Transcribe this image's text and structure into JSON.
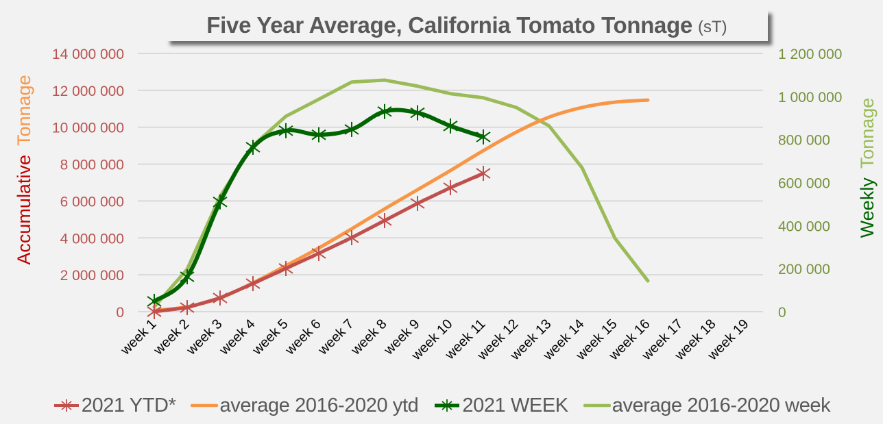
{
  "chart_data": {
    "type": "line",
    "title": "Five Year Average, California Tomato Tonnage",
    "title_unit": "(sT)",
    "categories": [
      "week 1",
      "week 2",
      "week 3",
      "week 4",
      "week 5",
      "week 6",
      "week 7",
      "week 8",
      "week 9",
      "week 10",
      "week 11",
      "week 12",
      "week 13",
      "week 14",
      "week 15",
      "week 16",
      "week 17",
      "week 18",
      "week 19"
    ],
    "y_left": {
      "label_part1": "Accumulative",
      "label_part2": "Tonnage",
      "label_part1_color": "#c00000",
      "label_part2_color": "#f79646",
      "range": [
        0,
        14000000
      ],
      "ticks": [
        0,
        2000000,
        4000000,
        6000000,
        8000000,
        10000000,
        12000000,
        14000000
      ],
      "tick_labels": [
        "0",
        "2 000 000",
        "4 000 000",
        "6 000 000",
        "8 000 000",
        "10 000 000",
        "12 000 000",
        "14 000 000"
      ],
      "tick_color": "#b85450"
    },
    "y_right": {
      "label_part1": "Weekly",
      "label_part2": "Tonnage",
      "label_part1_color": "#006400",
      "label_part2_color": "#9bbb59",
      "range": [
        0,
        1200000
      ],
      "ticks": [
        0,
        200000,
        400000,
        600000,
        800000,
        1000000,
        1200000
      ],
      "tick_labels": [
        "0",
        "200 000",
        "400 000",
        "600 000",
        "800 000",
        "1 000 000",
        "1 200 000"
      ],
      "tick_color": "#76923c"
    },
    "grid": true,
    "legend_position": "bottom",
    "series": [
      {
        "name": "2021 YTD*",
        "axis": "left",
        "color": "#c0504d",
        "marker": "asterisk",
        "smooth": false,
        "values": [
          0,
          220000,
          740000,
          1520000,
          2340000,
          3160000,
          4010000,
          4940000,
          5870000,
          6720000,
          7500000
        ]
      },
      {
        "name": "average 2016-2020 ytd",
        "axis": "left",
        "color": "#f79646",
        "marker": "none",
        "smooth": true,
        "values": [
          70000,
          260000,
          740000,
          1560000,
          2490000,
          3450000,
          4490000,
          5570000,
          6610000,
          7650000,
          8730000,
          9730000,
          10550000,
          11070000,
          11360000,
          11470000
        ]
      },
      {
        "name": "2021 WEEK",
        "axis": "right",
        "color": "#006400",
        "marker": "asterisk",
        "smooth": true,
        "values": [
          48000,
          162000,
          510000,
          764000,
          841000,
          822000,
          847000,
          930000,
          924000,
          863000,
          812000
        ]
      },
      {
        "name": "average 2016-2020 week",
        "axis": "right",
        "color": "#9bbb59",
        "marker": "none",
        "smooth": false,
        "values": [
          22000,
          197000,
          535000,
          771000,
          908000,
          987000,
          1067000,
          1076000,
          1048000,
          1013000,
          994000,
          949000,
          863000,
          669000,
          341000,
          143000
        ]
      }
    ]
  }
}
